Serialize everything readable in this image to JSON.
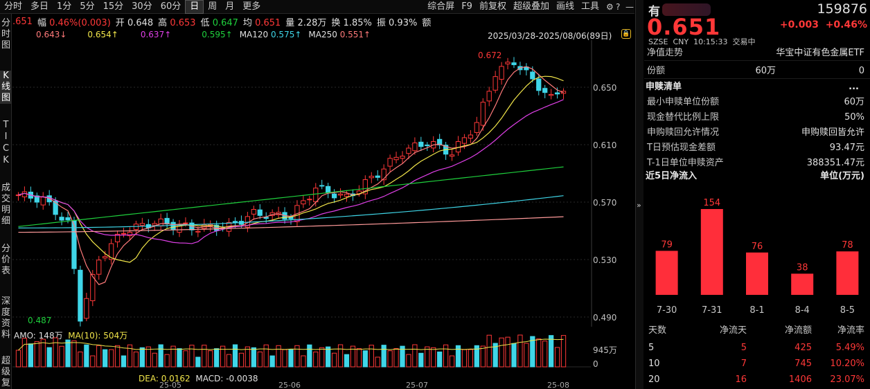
{
  "toolbar": {
    "left": [
      "分时",
      "多日",
      "1分",
      "5分",
      "15分",
      "30分",
      "60分",
      "日",
      "周",
      "月",
      "更多"
    ],
    "active": "日",
    "right": [
      "综合屏",
      "F9",
      "前复权",
      "超级叠加",
      "画线",
      "工具"
    ]
  },
  "left_tabs": [
    {
      "label": "分时图",
      "active": false
    },
    {
      "label": "K线图",
      "active": true
    },
    {
      "label": "TICK",
      "active": false
    },
    {
      "label": "成交明细",
      "active": false
    },
    {
      "label": "分价表",
      "active": false
    },
    {
      "label": "深度资料",
      "active": false
    },
    {
      "label": "超级复",
      "active": false
    }
  ],
  "info_strip": {
    "close_val": ".651",
    "amp_label": "幅",
    "amp_val": "0.46%(0.003)",
    "open_label": "开",
    "open_val": "0.648",
    "high_label": "高",
    "high_val": "0.653",
    "low_label": "低",
    "low_val": "0.647",
    "avg_label": "均",
    "avg_val": "0.651",
    "vol_label": "量",
    "vol_val": "2.28万",
    "turn_label": "换",
    "turn_val": "1.85%",
    "swing_label": "振",
    "swing_val": "0.93%",
    "amt_label": "额"
  },
  "ma_strip": {
    "ma5": "0.643↓",
    "ma10": "0.654↑",
    "ma20": "0.637↑",
    "ma60": "0.595↑",
    "ma120_label": "MA120",
    "ma120": "0.575↑",
    "ma250_label": "MA250",
    "ma250": "0.551↑"
  },
  "date_range": "2025/03/28-2025/08/06(89日)",
  "kchart": {
    "y_ticks": [
      "0.650",
      "0.610",
      "0.570",
      "0.530",
      "0.490"
    ],
    "high_annot": "0.672",
    "low_annot": "0.487"
  },
  "volume": {
    "amo_label": "AMO:",
    "amo_val": "148万",
    "ma_label": "MA(10):",
    "ma_val": "504万",
    "y_ticks": [
      "945万",
      "0"
    ]
  },
  "macd": {
    "dea_label": "DEA:",
    "dea_val": "0.0162",
    "macd_label": "MACD:",
    "macd_val": "-0.0038"
  },
  "x_axis": [
    "25-05",
    "25-06",
    "25-07",
    "25-08"
  ],
  "right": {
    "name": "有",
    "code": "159876",
    "price": "0.651",
    "change": "+0.003",
    "change_pct": "+0.46%",
    "exchange": "SZSE",
    "currency": "CNY",
    "time": "10:15:33",
    "status": "交易中",
    "nav_trend_label": "净值走势",
    "fund_name": "华宝中证有色金属ETF",
    "share_label": "份额",
    "share_val": "60万",
    "share_val2": "0",
    "creation_title": "申赎清单",
    "more": "...",
    "kv": [
      {
        "k": "最小申赎单位份额",
        "v": "60万"
      },
      {
        "k": "现金替代比例上限",
        "v": "50%"
      },
      {
        "k": "申购赎回允许情况",
        "v": "申购赎回皆允许"
      },
      {
        "k": "T日预估现金差额",
        "v": "93.47元"
      },
      {
        "k": "T-1日单位申赎资产",
        "v": "388351.47元"
      }
    ],
    "flow_title": "近5日净流入",
    "flow_unit": "单位(万元)",
    "flow_table_head": [
      "天数",
      "净流天",
      "净流额",
      "净流率"
    ],
    "flow_table": [
      [
        "5",
        "5",
        "425",
        "5.49%"
      ],
      [
        "10",
        "7",
        "745",
        "10.20%"
      ],
      [
        "20",
        "16",
        "1406",
        "23.07%"
      ]
    ]
  },
  "flow_chart": {
    "type": "bar",
    "categories": [
      "7-30",
      "7-31",
      "8-1",
      "8-4",
      "8-5"
    ],
    "values": [
      79,
      154,
      76,
      38,
      78
    ],
    "ylim": [
      0,
      154
    ]
  }
}
